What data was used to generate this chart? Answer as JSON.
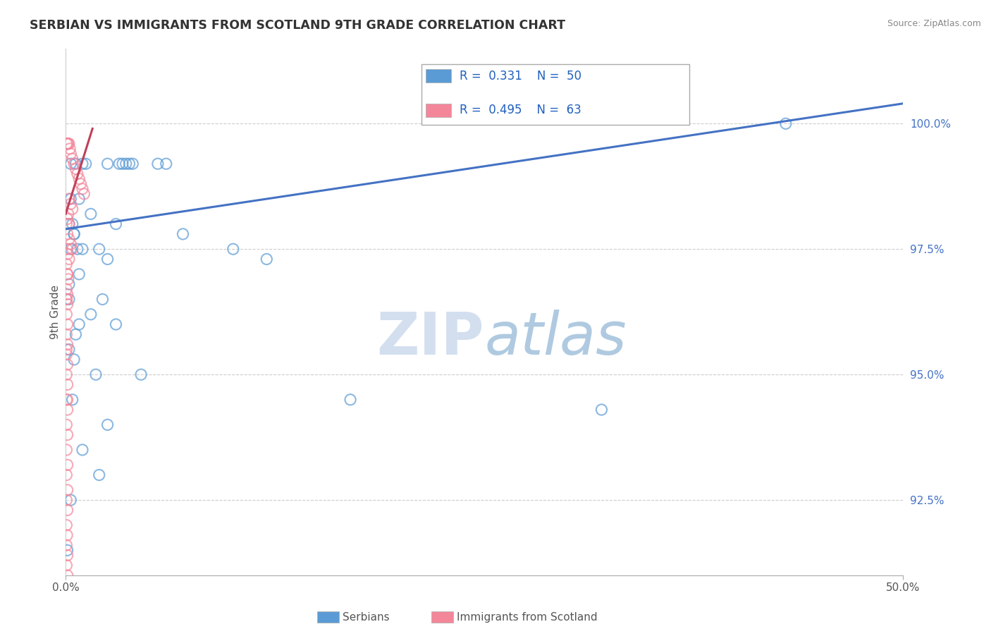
{
  "title": "SERBIAN VS IMMIGRANTS FROM SCOTLAND 9TH GRADE CORRELATION CHART",
  "source": "Source: ZipAtlas.com",
  "ylabel": "9th Grade",
  "xlim": [
    0.0,
    50.0
  ],
  "ylim": [
    91.0,
    101.5
  ],
  "blue_color": "#5B9BD5",
  "pink_color": "#F4869A",
  "trend_blue": "#4472C4",
  "trend_pink": "#C0405A",
  "legend_R_blue": "0.331",
  "legend_N_blue": "50",
  "legend_R_pink": "0.495",
  "legend_N_pink": "63",
  "ytick_vals": [
    92.5,
    95.0,
    97.5,
    100.0
  ],
  "ytick_labels": [
    "92.5%",
    "95.0%",
    "97.5%",
    "100.0%"
  ],
  "blue_scatter_x": [
    0.3,
    0.6,
    1.0,
    1.2,
    2.5,
    3.2,
    3.6,
    4.0,
    5.5,
    6.0,
    0.2,
    0.4,
    0.5,
    0.3,
    0.7,
    1.0,
    2.0,
    2.5,
    0.2,
    1.5,
    3.0,
    0.2,
    0.5,
    1.8,
    4.5,
    0.4,
    2.5,
    1.0,
    0.3,
    17.0,
    27.0,
    43.0,
    32.0,
    0.8,
    1.5,
    7.0,
    10.0,
    12.0,
    0.2,
    0.8,
    0.6,
    2.0,
    0.1,
    3.0,
    3.4,
    3.8,
    0.3,
    0.5,
    0.8,
    2.2
  ],
  "blue_scatter_y": [
    99.2,
    99.2,
    99.2,
    99.2,
    99.2,
    99.2,
    99.2,
    99.2,
    99.2,
    99.2,
    98.0,
    98.0,
    97.8,
    97.5,
    97.5,
    97.5,
    97.5,
    97.3,
    96.5,
    96.2,
    96.0,
    95.5,
    95.3,
    95.0,
    95.0,
    94.5,
    94.0,
    93.5,
    92.5,
    94.5,
    100.5,
    100.0,
    94.3,
    98.5,
    98.2,
    97.8,
    97.5,
    97.3,
    96.8,
    96.0,
    95.8,
    93.0,
    91.5,
    98.0,
    99.2,
    99.2,
    98.5,
    97.8,
    97.0,
    96.5
  ],
  "pink_scatter_x": [
    0.05,
    0.1,
    0.15,
    0.2,
    0.25,
    0.3,
    0.4,
    0.5,
    0.6,
    0.7,
    0.8,
    0.9,
    1.0,
    1.1,
    0.2,
    0.3,
    0.4,
    0.15,
    0.1,
    0.2,
    0.1,
    0.2,
    0.3,
    0.4,
    0.1,
    0.2,
    0.05,
    0.1,
    0.15,
    0.05,
    0.1,
    0.05,
    0.1,
    0.05,
    0.1,
    0.05,
    0.1,
    0.05,
    0.1,
    0.05,
    0.1,
    0.05,
    0.1,
    0.05,
    0.1,
    0.05,
    0.1,
    0.05,
    0.1,
    0.05,
    0.1,
    0.05,
    0.08,
    0.05,
    0.1,
    0.05,
    0.1,
    0.05,
    0.1,
    0.05,
    0.1,
    0.05,
    0.08
  ],
  "pink_scatter_y": [
    99.6,
    99.6,
    99.6,
    99.6,
    99.5,
    99.4,
    99.3,
    99.2,
    99.1,
    99.0,
    98.9,
    98.8,
    98.7,
    98.6,
    98.5,
    98.4,
    98.3,
    98.2,
    98.1,
    98.0,
    97.8,
    97.7,
    97.6,
    97.5,
    97.4,
    97.3,
    97.2,
    97.0,
    96.9,
    96.7,
    96.6,
    96.5,
    96.4,
    96.2,
    96.0,
    95.8,
    95.6,
    95.4,
    95.2,
    95.0,
    94.8,
    94.5,
    94.3,
    94.0,
    93.8,
    93.5,
    93.2,
    93.0,
    92.7,
    92.5,
    92.3,
    92.0,
    91.8,
    91.6,
    91.4,
    91.2,
    91.0,
    96.5,
    97.0,
    95.5,
    94.5,
    98.0,
    97.5
  ],
  "blue_trend_x": [
    0.0,
    50.0
  ],
  "blue_trend_y": [
    97.9,
    100.4
  ],
  "pink_trend_x": [
    0.0,
    1.6
  ],
  "pink_trend_y": [
    98.2,
    99.9
  ]
}
